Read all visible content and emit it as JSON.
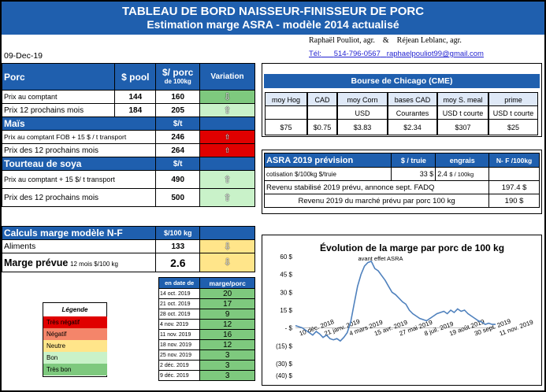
{
  "title": {
    "line1": "TABLEAU DE BORD NAISSEUR-FINISSEUR DE PORC",
    "line2": "Estimation marge ASRA - modèle 2014 actualisé"
  },
  "authors": {
    "name1": "Raphaël Pouliot, agr.",
    "amp": "&",
    "name2": "Réjean Leblanc, agr.",
    "tel_label": "Tél:",
    "tel": "514-796-0567",
    "email": "raphaelpouliot99@gmail.com"
  },
  "date": "09-Dec-19",
  "porc": {
    "section": "Porc",
    "col_pool": "$ pool",
    "col_porc_l1": "$/ porc",
    "col_porc_l2": "de 100kg",
    "col_var": "Variation",
    "rows": [
      {
        "label": "Prix au comptant",
        "pool": "144",
        "porc": "160",
        "status": "green",
        "arrow": "down"
      },
      {
        "label": "Prix 12 prochains mois",
        "pool": "184",
        "porc": "205",
        "status": "lgreen",
        "arrow": "up"
      }
    ]
  },
  "mais": {
    "section": "Maïs",
    "unit": "$/t",
    "rows": [
      {
        "label": "Prix au comptant FOB + 15 $ / t transport",
        "value": "246",
        "status": "red",
        "arrow": "up"
      },
      {
        "label": "Prix des 12 prochains mois",
        "value": "264",
        "status": "red",
        "arrow": "up"
      }
    ]
  },
  "soya": {
    "section": "Tourteau de soya",
    "unit": "$/t",
    "rows": [
      {
        "label": "Prix au comptant + 15 $/ t transport",
        "value": "490",
        "status": "lgreen",
        "arrow": "up"
      },
      {
        "label": "Prix des 12 prochains mois",
        "value": "500",
        "status": "lgreen",
        "arrow": "up"
      }
    ]
  },
  "marge": {
    "section": "Calculs marge modèle N-F",
    "unit": "$/100 kg",
    "aliments_label": "Aliments",
    "aliments_value": "133",
    "prevue_label": "Marge prévue",
    "prevue_sub": "12 mois $/100 kg",
    "prevue_value": "2.6",
    "hist_col1": "en date de",
    "hist_col2": "marge/porc",
    "history": [
      {
        "date": "14 oct. 2019",
        "value": "20"
      },
      {
        "date": "21 oct. 2019",
        "value": "17"
      },
      {
        "date": "28 oct. 2019",
        "value": "9"
      },
      {
        "date": "4 nov. 2019",
        "value": "12"
      },
      {
        "date": "11 nov. 2019",
        "value": "16"
      },
      {
        "date": "18 nov. 2019",
        "value": "12"
      },
      {
        "date": "25 nov. 2019",
        "value": "3"
      },
      {
        "date": "2 déc. 2019",
        "value": "3"
      },
      {
        "date": "9 déc. 2019",
        "value": "3"
      }
    ]
  },
  "legend": {
    "title": "Légende",
    "items": [
      {
        "label": "Très négatif",
        "color": "#e00000"
      },
      {
        "label": "Négatif",
        "color": "#f4856a"
      },
      {
        "label": "Neutre",
        "color": "#ffe58a"
      },
      {
        "label": "Bon",
        "color": "#c9f2c9"
      },
      {
        "label": "Très bon",
        "color": "#7ec97e"
      }
    ]
  },
  "cme": {
    "title": "Bourse de Chicago (CME)",
    "headers": [
      "moy Hog",
      "CAD",
      "moy Corn",
      "bases CAD",
      "moy S. meal",
      "prime"
    ],
    "units": [
      "",
      "",
      "USD",
      "Courantes",
      "USD t courte",
      "USD t courte"
    ],
    "values": [
      "$75",
      "$0.75",
      "$3.83",
      "$2.34",
      "$307",
      "$25"
    ]
  },
  "asra": {
    "title": "ASRA 2019 prévision",
    "col_truie": "$ / truie",
    "col_engrais": "engrais",
    "col_nf": "N- F /100kg",
    "cotisation_label": "cotisation $/100kg $/truie",
    "cotisation_truie": "33 $",
    "cotisation_engrais": "2.4",
    "cotisation_unit": "$ / 100kg",
    "revenu_stab_label": "Revenu stabilisé 2019 prévu, annonce sept. FADQ",
    "revenu_stab_value": "197.4 $",
    "revenu_marche_label": "Revenu 2019 du marché prévu par porc 100 kg",
    "revenu_marche_value": "190 $"
  },
  "chart_data": {
    "type": "line",
    "title": "Évolution de la marge par porc de 100 kg",
    "subtitle": "avant effet ASRA",
    "y_ticks": [
      "60 $",
      "45 $",
      "30 $",
      "15 $",
      "- $",
      "(15) $",
      "(30) $",
      "(40) $"
    ],
    "x_ticks": [
      "10 déc. 2018",
      "21 janv. 2019",
      "4 mars 2019",
      "15 avr. 2019",
      "27 mai 2019",
      "8 juil. 2019",
      "19 août 2019",
      "30 sept. 2019",
      "11 nov. 2019"
    ],
    "ylim": [
      -40,
      60
    ],
    "values": [
      2,
      1,
      0,
      -2,
      -4,
      -6,
      -3,
      -5,
      -8,
      -6,
      -9,
      -10,
      -9,
      -11,
      -8,
      -4,
      5,
      20,
      35,
      45,
      52,
      55,
      56,
      50,
      48,
      44,
      40,
      35,
      30,
      28,
      25,
      22,
      20,
      15,
      12,
      10,
      8,
      7,
      6,
      8,
      10,
      12,
      13,
      14,
      12,
      15,
      13,
      16,
      14,
      15,
      12,
      10,
      8,
      6,
      5,
      3,
      4,
      3,
      3
    ],
    "color": "#4f81bd"
  }
}
